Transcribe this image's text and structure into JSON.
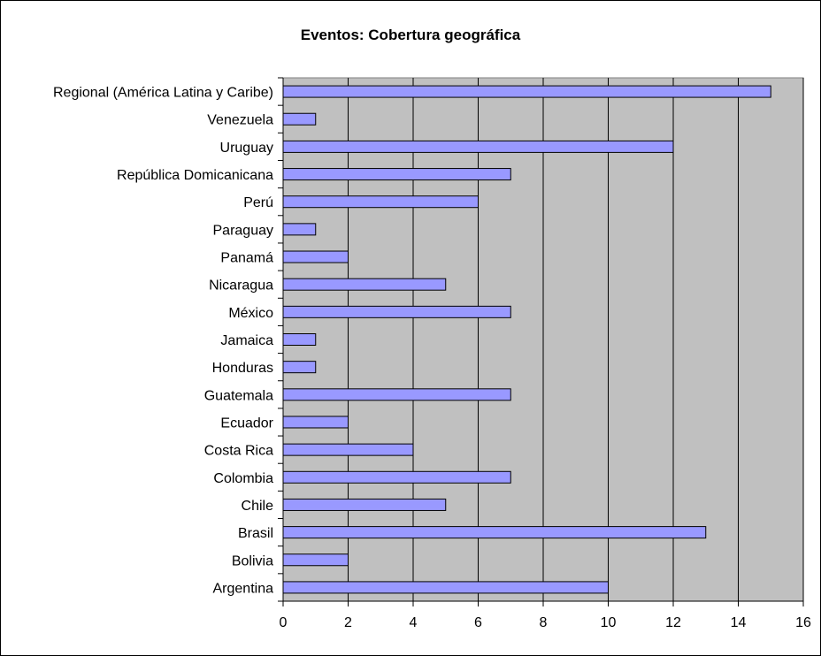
{
  "chart_data": {
    "type": "bar",
    "orientation": "horizontal",
    "title": "Eventos:  Cobertura geográfica",
    "xlabel": "",
    "ylabel": "",
    "categories": [
      "Regional (América Latina y Caribe)",
      "Venezuela",
      "Uruguay",
      "República Domicanicana",
      "Perú",
      "Paraguay",
      "Panamá",
      "Nicaragua",
      "México",
      "Jamaica",
      "Honduras",
      "Guatemala",
      "Ecuador",
      "Costa Rica",
      "Colombia",
      "Chile",
      "Brasil",
      "Bolivia",
      "Argentina"
    ],
    "values": [
      15,
      1,
      12,
      7,
      6,
      1,
      2,
      5,
      7,
      1,
      1,
      7,
      2,
      4,
      7,
      5,
      13,
      2,
      10
    ],
    "xlim": [
      0,
      16
    ],
    "xticks": [
      "0",
      "2",
      "4",
      "6",
      "8",
      "10",
      "12",
      "14",
      "16"
    ],
    "grid": "vertical",
    "legend": "none",
    "colors": {
      "bar_fill": "#9999ff",
      "bar_stroke": "#000000",
      "plot_background": "#c0c0c0",
      "gridline": "#000000"
    }
  }
}
